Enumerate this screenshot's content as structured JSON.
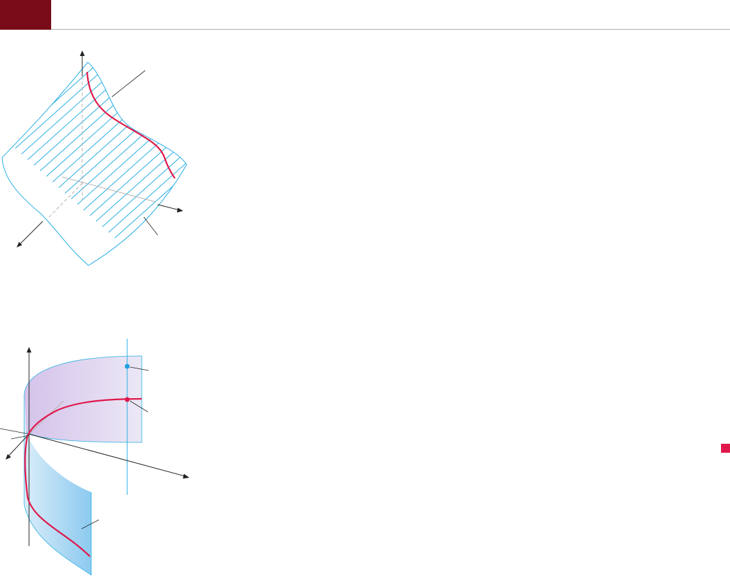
{
  "colors": {
    "header_block": "#7a0c19",
    "header_rule": "#b0b0b0",
    "side_marker": "#e0174a",
    "surface_line": "#27aee3",
    "curve": "#e0174a",
    "axis": "#222222",
    "hidden_line": "#b4b4b4",
    "band_front_start": "#d6ebf8",
    "band_front_end": "#7fc4ee",
    "band_back_start": "#cdb8e6",
    "band_back_end": "#e8e4f4",
    "point_upper": "#1e9fe0",
    "point_lower": "#e0174a"
  },
  "icons": {
    "side_marker": "square-marker-icon"
  },
  "figures": [
    {
      "id": "ruled-cylinder-surface",
      "labels": []
    },
    {
      "id": "curved-band-surface",
      "labels": []
    }
  ]
}
